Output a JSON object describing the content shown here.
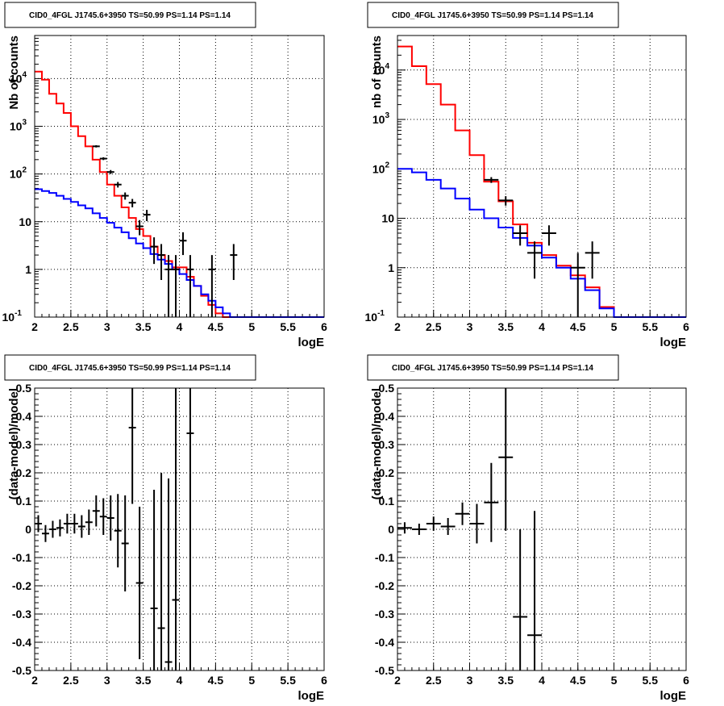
{
  "chart_data": [
    {
      "type": "histogram",
      "title": "CID0_4FGL J1745.6+3950 TS=50.99 PS=1.14 PS=1.14",
      "xlabel": "logE",
      "ylabel": "Nb of counts",
      "xlim": [
        2,
        6
      ],
      "ylim": [
        0.1,
        80000
      ],
      "ylog": true,
      "grid": true,
      "x_ticks": [
        "2",
        "2.5",
        "3",
        "3.5",
        "4",
        "4.5",
        "5",
        "5.5",
        "6"
      ],
      "y_ticks": [
        {
          "value": 0.1,
          "label": "10",
          "sup": "-1"
        },
        {
          "value": 1,
          "label": "1",
          "sup": ""
        },
        {
          "value": 10,
          "label": "10",
          "sup": ""
        },
        {
          "value": 100,
          "label": "10",
          "sup": "2"
        },
        {
          "value": 1000,
          "label": "10",
          "sup": "3"
        },
        {
          "value": 10000,
          "label": "10",
          "sup": "4"
        }
      ],
      "bin_edges": [
        2.0,
        2.1,
        2.2,
        2.3,
        2.4,
        2.5,
        2.6,
        2.7,
        2.8,
        2.9,
        3.0,
        3.1,
        3.2,
        3.3,
        3.4,
        3.5,
        3.6,
        3.7,
        3.8,
        3.9,
        4.0,
        4.1,
        4.2,
        4.3,
        4.4,
        4.5,
        4.6,
        4.7,
        4.8,
        4.9,
        5.0,
        5.1,
        5.2,
        5.3,
        5.4,
        5.5,
        5.6,
        5.7,
        5.8,
        5.9,
        6.0
      ],
      "series": [
        {
          "kind": "step",
          "color": "#ff0000",
          "values": [
            14000,
            9500,
            4800,
            3000,
            1900,
            1000,
            620,
            380,
            200,
            110,
            60,
            35,
            20,
            12,
            7,
            5,
            3,
            2,
            1.5,
            1.1,
            1.1,
            0.7,
            0.45,
            0.28,
            0.18,
            0.12,
            0.1,
            0.1,
            0.1,
            0.1,
            0.1,
            0.1,
            0.1,
            0.1,
            0.1,
            0.1,
            0.1,
            0.1,
            0.1,
            0.1
          ]
        },
        {
          "kind": "step",
          "color": "#0000ff",
          "values": [
            48,
            44,
            40,
            35,
            30,
            26,
            22,
            19,
            15,
            12,
            9.5,
            7.5,
            6,
            4.5,
            3.5,
            2.8,
            2.1,
            1.6,
            1.3,
            1.0,
            0.8,
            0.6,
            0.45,
            0.3,
            0.22,
            0.16,
            0.12,
            0.1,
            0.1,
            0.1,
            0.1,
            0.1,
            0.1,
            0.1,
            0.1,
            0.1,
            0.1,
            0.1,
            0.1,
            0.1
          ]
        },
        {
          "kind": "points",
          "color": "#000000",
          "points": [
            {
              "x": 2.85,
              "y": 380,
              "lo": 360,
              "hi": 400
            },
            {
              "x": 2.95,
              "y": 210,
              "lo": 196,
              "hi": 224
            },
            {
              "x": 3.05,
              "y": 110,
              "lo": 100,
              "hi": 121
            },
            {
              "x": 3.15,
              "y": 60,
              "lo": 52,
              "hi": 68
            },
            {
              "x": 3.25,
              "y": 35,
              "lo": 29,
              "hi": 41
            },
            {
              "x": 3.35,
              "y": 25,
              "lo": 20,
              "hi": 30
            },
            {
              "x": 3.45,
              "y": 8,
              "lo": 5.2,
              "hi": 10.8
            },
            {
              "x": 3.55,
              "y": 14,
              "lo": 10.3,
              "hi": 17.7
            },
            {
              "x": 3.65,
              "y": 3,
              "lo": 1.3,
              "hi": 4.7
            },
            {
              "x": 3.75,
              "y": 2,
              "lo": 0.6,
              "hi": 3.4
            },
            {
              "x": 3.85,
              "y": 1,
              "lo": 0.1,
              "hi": 2
            },
            {
              "x": 3.95,
              "y": 1,
              "lo": 0.1,
              "hi": 2
            },
            {
              "x": 4.05,
              "y": 4,
              "lo": 2,
              "hi": 6
            },
            {
              "x": 4.15,
              "y": 1,
              "lo": 0.1,
              "hi": 2
            },
            {
              "x": 4.45,
              "y": 1,
              "lo": 0.1,
              "hi": 2
            },
            {
              "x": 4.75,
              "y": 2,
              "lo": 0.6,
              "hi": 3.4
            }
          ]
        }
      ]
    },
    {
      "type": "histogram",
      "title": "CID0_4FGL J1745.6+3950 TS=50.99 PS=1.14 PS=1.14",
      "xlabel": "logE",
      "ylabel": "nb of counts",
      "xlim": [
        2,
        6
      ],
      "ylim": [
        0.1,
        50000
      ],
      "ylog": true,
      "grid": true,
      "x_ticks": [
        "2",
        "2.5",
        "3",
        "3.5",
        "4",
        "4.5",
        "5",
        "5.5",
        "6"
      ],
      "y_ticks": [
        {
          "value": 0.1,
          "label": "10",
          "sup": "-1"
        },
        {
          "value": 1,
          "label": "1",
          "sup": ""
        },
        {
          "value": 10,
          "label": "10",
          "sup": ""
        },
        {
          "value": 100,
          "label": "10",
          "sup": "2"
        },
        {
          "value": 1000,
          "label": "10",
          "sup": "3"
        },
        {
          "value": 10000,
          "label": "10",
          "sup": "4"
        }
      ],
      "bin_edges": [
        2.0,
        2.2,
        2.4,
        2.6,
        2.8,
        3.0,
        3.2,
        3.4,
        3.6,
        3.8,
        4.0,
        4.2,
        4.4,
        4.6,
        4.8,
        5.0,
        5.2,
        5.4,
        5.6,
        5.8,
        6.0
      ],
      "series": [
        {
          "kind": "step",
          "color": "#ff0000",
          "values": [
            30000,
            12000,
            5200,
            2000,
            600,
            190,
            55,
            22,
            7.5,
            3.2,
            1.8,
            1.1,
            0.7,
            0.4,
            0.16,
            0.1,
            0.1,
            0.1,
            0.1,
            0.1
          ]
        },
        {
          "kind": "step",
          "color": "#0000ff",
          "values": [
            100,
            85,
            60,
            40,
            25,
            15,
            10,
            6.5,
            4,
            2.8,
            1.6,
            1,
            0.6,
            0.35,
            0.15,
            0.1,
            0.1,
            0.1,
            0.1,
            0.1
          ]
        },
        {
          "kind": "points",
          "color": "#000000",
          "points": [
            {
              "x": 3.3,
              "y": 60,
              "lo": 52,
              "hi": 68
            },
            {
              "x": 3.5,
              "y": 23,
              "lo": 18,
              "hi": 28
            },
            {
              "x": 3.7,
              "y": 5,
              "lo": 2.8,
              "hi": 7.2
            },
            {
              "x": 3.9,
              "y": 2,
              "lo": 0.6,
              "hi": 3.4
            },
            {
              "x": 4.1,
              "y": 5,
              "lo": 2.8,
              "hi": 7.2
            },
            {
              "x": 4.5,
              "y": 1,
              "lo": 0.1,
              "hi": 2
            },
            {
              "x": 4.7,
              "y": 2,
              "lo": 0.6,
              "hi": 3.4
            }
          ]
        }
      ]
    },
    {
      "type": "scatter",
      "title": "CID0_4FGL J1745.6+3950 TS=50.99 PS=1.14 PS=1.14",
      "xlabel": "logE",
      "ylabel": "(data-model)/model",
      "xlim": [
        2,
        6
      ],
      "ylim": [
        -0.5,
        0.5
      ],
      "grid": true,
      "x_ticks": [
        "2",
        "2.5",
        "3",
        "3.5",
        "4",
        "4.5",
        "5",
        "5.5",
        "6"
      ],
      "y_ticks": [
        "-0.5",
        "-0.4",
        "-0.3",
        "-0.2",
        "-0.1",
        "0",
        "0.1",
        "0.2",
        "0.3",
        "0.4",
        "0.5"
      ],
      "series": [
        {
          "kind": "errorbars",
          "color": "#000000",
          "xerr": 0.05,
          "points": [
            {
              "x": 2.05,
              "y": 0.02,
              "err": 0.03
            },
            {
              "x": 2.15,
              "y": -0.015,
              "err": 0.03
            },
            {
              "x": 2.25,
              "y": 0.0,
              "err": 0.03
            },
            {
              "x": 2.35,
              "y": 0.005,
              "err": 0.03
            },
            {
              "x": 2.45,
              "y": 0.02,
              "err": 0.035
            },
            {
              "x": 2.55,
              "y": 0.02,
              "err": 0.035
            },
            {
              "x": 2.65,
              "y": 0.01,
              "err": 0.04
            },
            {
              "x": 2.75,
              "y": 0.025,
              "err": 0.045
            },
            {
              "x": 2.85,
              "y": 0.065,
              "err": 0.055
            },
            {
              "x": 2.95,
              "y": 0.045,
              "err": 0.065
            },
            {
              "x": 3.05,
              "y": 0.04,
              "err": 0.08
            },
            {
              "x": 3.15,
              "y": -0.005,
              "err": 0.13
            },
            {
              "x": 3.25,
              "y": -0.05,
              "err": 0.17
            },
            {
              "x": 3.35,
              "y": 0.36,
              "err": 0.27
            },
            {
              "x": 3.45,
              "y": -0.19,
              "err": 0.27
            },
            {
              "x": 3.65,
              "y": -0.28,
              "err": 0.42
            },
            {
              "x": 3.75,
              "y": -0.35,
              "err": 0.55
            },
            {
              "x": 3.85,
              "y": -0.47,
              "err": 0.65
            },
            {
              "x": 3.95,
              "y": -0.25,
              "err": 0.75
            },
            {
              "x": 4.15,
              "y": 0.34,
              "err": 0.9
            }
          ]
        }
      ]
    },
    {
      "type": "scatter",
      "title": "CID0_4FGL J1745.6+3950 TS=50.99 PS=1.14 PS=1.14",
      "xlabel": "logE",
      "ylabel": "(data-model)/model",
      "xlim": [
        2,
        6
      ],
      "ylim": [
        -0.5,
        0.5
      ],
      "grid": true,
      "x_ticks": [
        "2",
        "2.5",
        "3",
        "3.5",
        "4",
        "4.5",
        "5",
        "5.5",
        "6"
      ],
      "y_ticks": [
        "-0.5",
        "-0.4",
        "-0.3",
        "-0.2",
        "-0.1",
        "0",
        "0.1",
        "0.2",
        "0.3",
        "0.4",
        "0.5"
      ],
      "series": [
        {
          "kind": "errorbars",
          "color": "#000000",
          "xerr": 0.1,
          "points": [
            {
              "x": 2.1,
              "y": 0.005,
              "err": 0.02
            },
            {
              "x": 2.3,
              "y": 0.0,
              "err": 0.02
            },
            {
              "x": 2.5,
              "y": 0.02,
              "err": 0.025
            },
            {
              "x": 2.7,
              "y": 0.01,
              "err": 0.03
            },
            {
              "x": 2.9,
              "y": 0.055,
              "err": 0.04
            },
            {
              "x": 3.1,
              "y": 0.02,
              "err": 0.07
            },
            {
              "x": 3.3,
              "y": 0.095,
              "err": 0.14
            },
            {
              "x": 3.5,
              "y": 0.255,
              "err": 0.26
            },
            {
              "x": 3.7,
              "y": -0.31,
              "err": 0.31
            },
            {
              "x": 3.9,
              "y": -0.375,
              "err": 0.44
            }
          ]
        }
      ]
    }
  ]
}
